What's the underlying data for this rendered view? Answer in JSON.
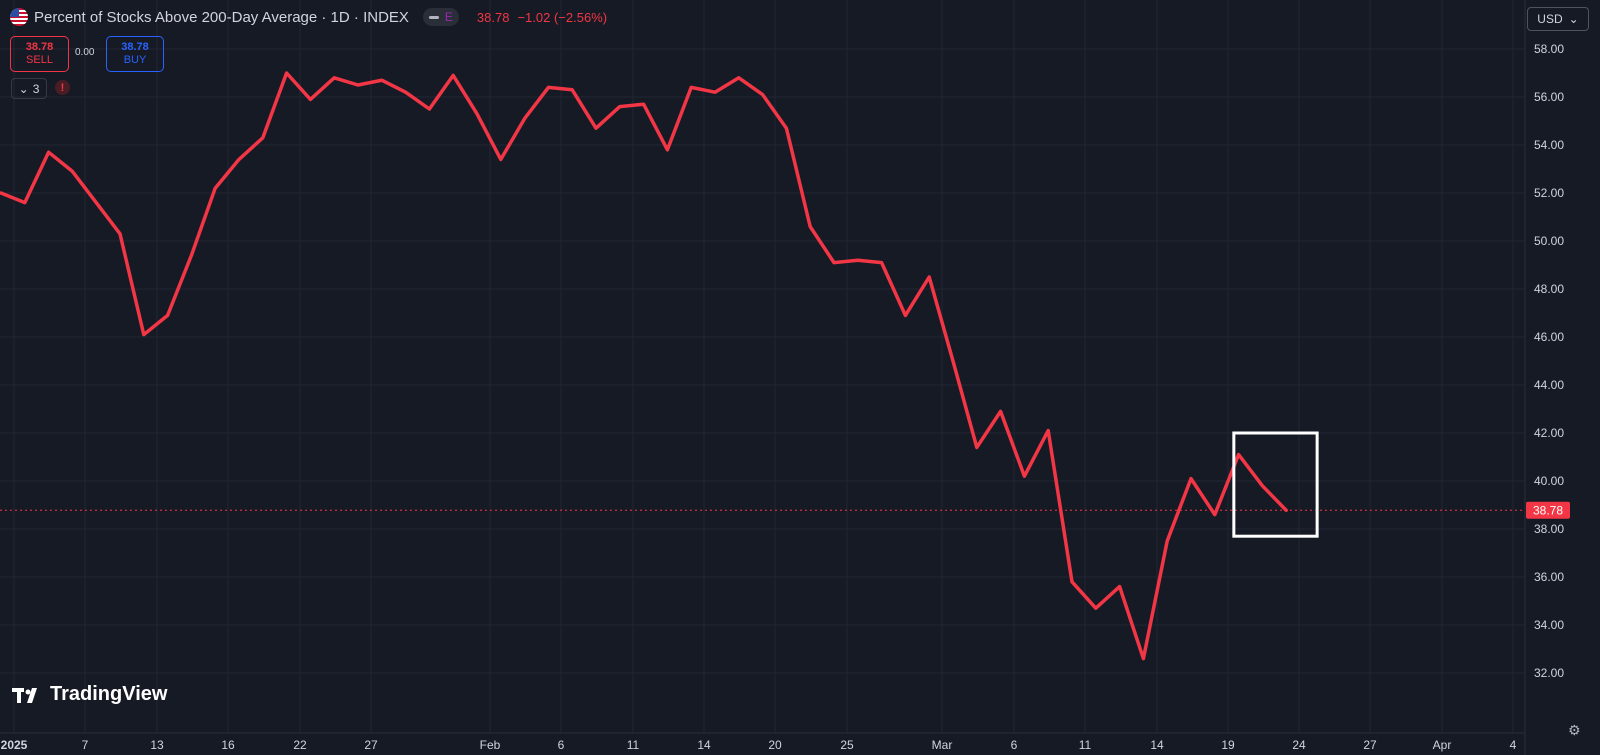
{
  "header": {
    "title": "Percent of Stocks Above 200-Day Average · 1D · INDEX",
    "pill_label": "E",
    "last_value": "38.78",
    "change": "−1.02 (−2.56%)"
  },
  "trade": {
    "sell_price": "38.78",
    "sell_label": "SELL",
    "spread": "0.00",
    "buy_price": "38.78",
    "buy_label": "BUY"
  },
  "indicators": {
    "count": "3",
    "warning": "!"
  },
  "currency": {
    "label": "USD",
    "caret": "⌄"
  },
  "brand": {
    "name": "TradingView"
  },
  "colors": {
    "line": "#f23645",
    "background": "#161a25",
    "grid": "#232632",
    "axis_text": "#d1d4dc"
  },
  "chart_data": {
    "type": "line",
    "series": [
      {
        "values": [
          52.0,
          51.6,
          53.7,
          52.9,
          51.6,
          50.3,
          46.1,
          46.9,
          49.4,
          52.2,
          53.4,
          54.3,
          57.0,
          55.9,
          56.8,
          56.5,
          56.7,
          56.2,
          55.5,
          56.9,
          55.3,
          53.4,
          55.1,
          56.4,
          56.3,
          54.7,
          55.6,
          55.7,
          53.8,
          56.4,
          56.2,
          56.8,
          56.1,
          54.7,
          50.6,
          49.1,
          49.2,
          49.1,
          46.9,
          48.5,
          45.0,
          41.4,
          42.9,
          40.2,
          42.1,
          35.8,
          34.7,
          35.6,
          32.6,
          37.5,
          40.1,
          38.6,
          41.1,
          39.8,
          38.78
        ]
      }
    ],
    "last_value": 38.78,
    "y_ticks": [
      "58.00",
      "56.00",
      "54.00",
      "52.00",
      "50.00",
      "48.00",
      "46.00",
      "44.00",
      "42.00",
      "40.00",
      "38.00",
      "36.00",
      "34.00",
      "32.00"
    ],
    "x_ticks": [
      "2025",
      "7",
      "13",
      "16",
      "22",
      "27",
      "Feb",
      "6",
      "11",
      "14",
      "20",
      "25",
      "Mar",
      "6",
      "11",
      "14",
      "19",
      "24",
      "27",
      "Apr",
      "4"
    ],
    "ylim": [
      31,
      59
    ],
    "grid": true,
    "highlight": {
      "x_from": 51.8,
      "x_to": 55.3,
      "y_from": 37.7,
      "y_to": 42.0
    }
  }
}
